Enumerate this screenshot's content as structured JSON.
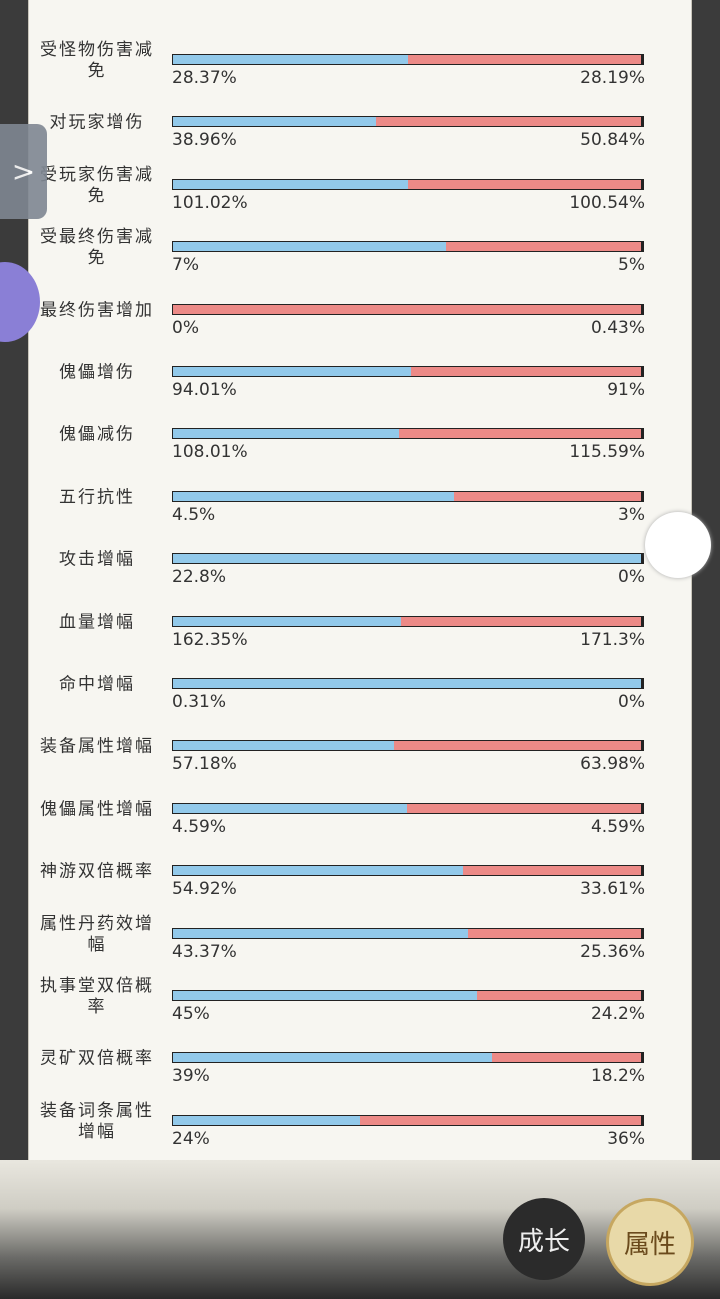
{
  "rows": [
    {
      "label": "受怪物伤害减免",
      "left": 28.37,
      "left_label": "28.37%",
      "right": 28.19,
      "right_label": "28.19%"
    },
    {
      "label": "对玩家增伤",
      "left": 38.96,
      "left_label": "38.96%",
      "right": 50.84,
      "right_label": "50.84%"
    },
    {
      "label": "受玩家伤害减免",
      "left": 101.02,
      "left_label": "101.02%",
      "right": 100.54,
      "right_label": "100.54%"
    },
    {
      "label": "受最终伤害减免",
      "left": 7,
      "left_label": "7%",
      "right": 5,
      "right_label": "5%"
    },
    {
      "label": "最终伤害增加",
      "left": 0,
      "left_label": "0%",
      "right": 0.43,
      "right_label": "0.43%"
    },
    {
      "label": "傀儡增伤",
      "left": 94.01,
      "left_label": "94.01%",
      "right": 91,
      "right_label": "91%"
    },
    {
      "label": "傀儡减伤",
      "left": 108.01,
      "left_label": "108.01%",
      "right": 115.59,
      "right_label": "115.59%"
    },
    {
      "label": "五行抗性",
      "left": 4.5,
      "left_label": "4.5%",
      "right": 3,
      "right_label": "3%"
    },
    {
      "label": "攻击增幅",
      "left": 22.8,
      "left_label": "22.8%",
      "right": 0,
      "right_label": "0%"
    },
    {
      "label": "血量增幅",
      "left": 162.35,
      "left_label": "162.35%",
      "right": 171.3,
      "right_label": "171.3%"
    },
    {
      "label": "命中增幅",
      "left": 0.31,
      "left_label": "0.31%",
      "right": 0,
      "right_label": "0%"
    },
    {
      "label": "装备属性增幅",
      "left": 57.18,
      "left_label": "57.18%",
      "right": 63.98,
      "right_label": "63.98%"
    },
    {
      "label": "傀儡属性增幅",
      "left": 4.59,
      "left_label": "4.59%",
      "right": 4.59,
      "right_label": "4.59%"
    },
    {
      "label": "神游双倍概率",
      "left": 54.92,
      "left_label": "54.92%",
      "right": 33.61,
      "right_label": "33.61%"
    },
    {
      "label": "属性丹药效增幅",
      "left": 43.37,
      "left_label": "43.37%",
      "right": 25.36,
      "right_label": "25.36%"
    },
    {
      "label": "执事堂双倍概率",
      "left": 45,
      "left_label": "45%",
      "right": 24.2,
      "right_label": "24.2%"
    },
    {
      "label": "灵矿双倍概率",
      "left": 39,
      "left_label": "39%",
      "right": 18.2,
      "right_label": "18.2%"
    },
    {
      "label": "装备词条属性增幅",
      "left": 24,
      "left_label": "24%",
      "right": 36,
      "right_label": "36%"
    }
  ],
  "tabs": [
    "成长",
    "属性"
  ]
}
